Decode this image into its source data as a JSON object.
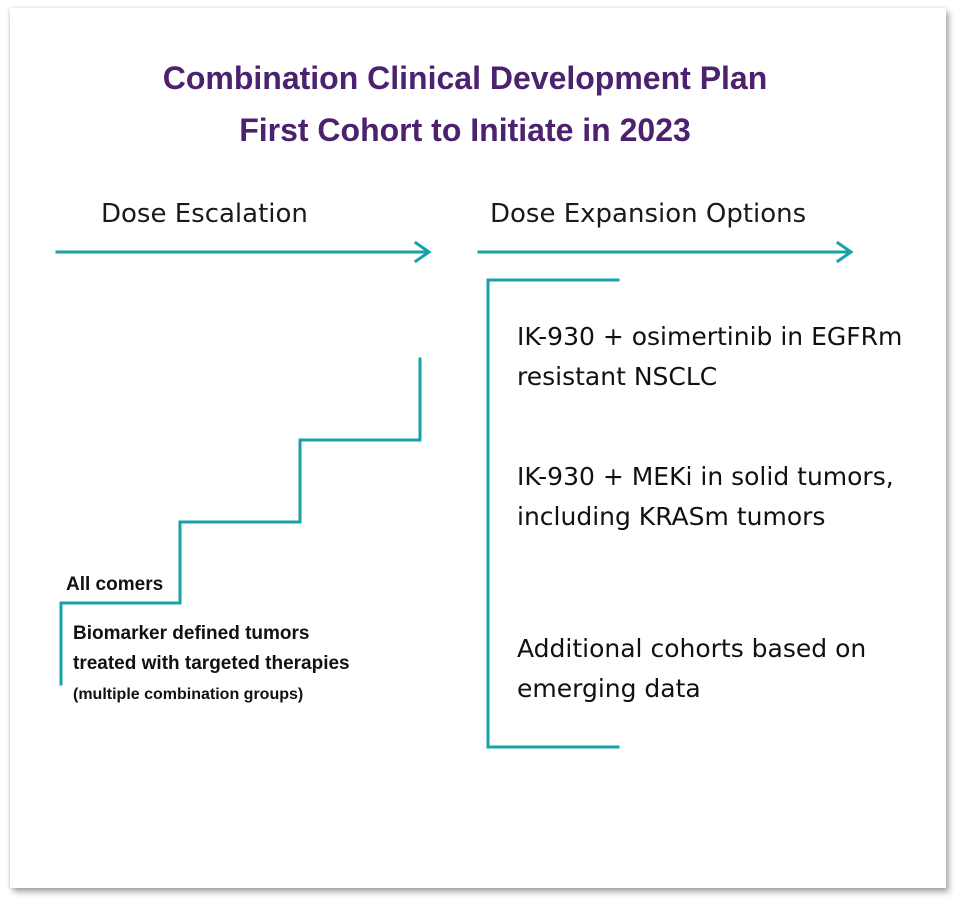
{
  "title": {
    "line1": "Combination Clinical Development Plan",
    "line2": "First Cohort to Initiate in 2023"
  },
  "phases": {
    "escalation": "Dose Escalation",
    "expansion": "Dose Expansion Options"
  },
  "escalation": {
    "all_comers": "All comers",
    "biomarker_main": "Biomarker defined tumors treated with targeted therapies",
    "biomarker_note": "(multiple combination groups)"
  },
  "expansion_cohorts": [
    "IK-930 + osimertinib in EGFRm resistant NSCLC",
    "IK-930 + MEKi in solid tumors, including KRASm tumors",
    "Additional cohorts based on emerging data"
  ],
  "colors": {
    "title": "#4b2170",
    "accent": "#1aa0a8",
    "text": "#111111"
  }
}
